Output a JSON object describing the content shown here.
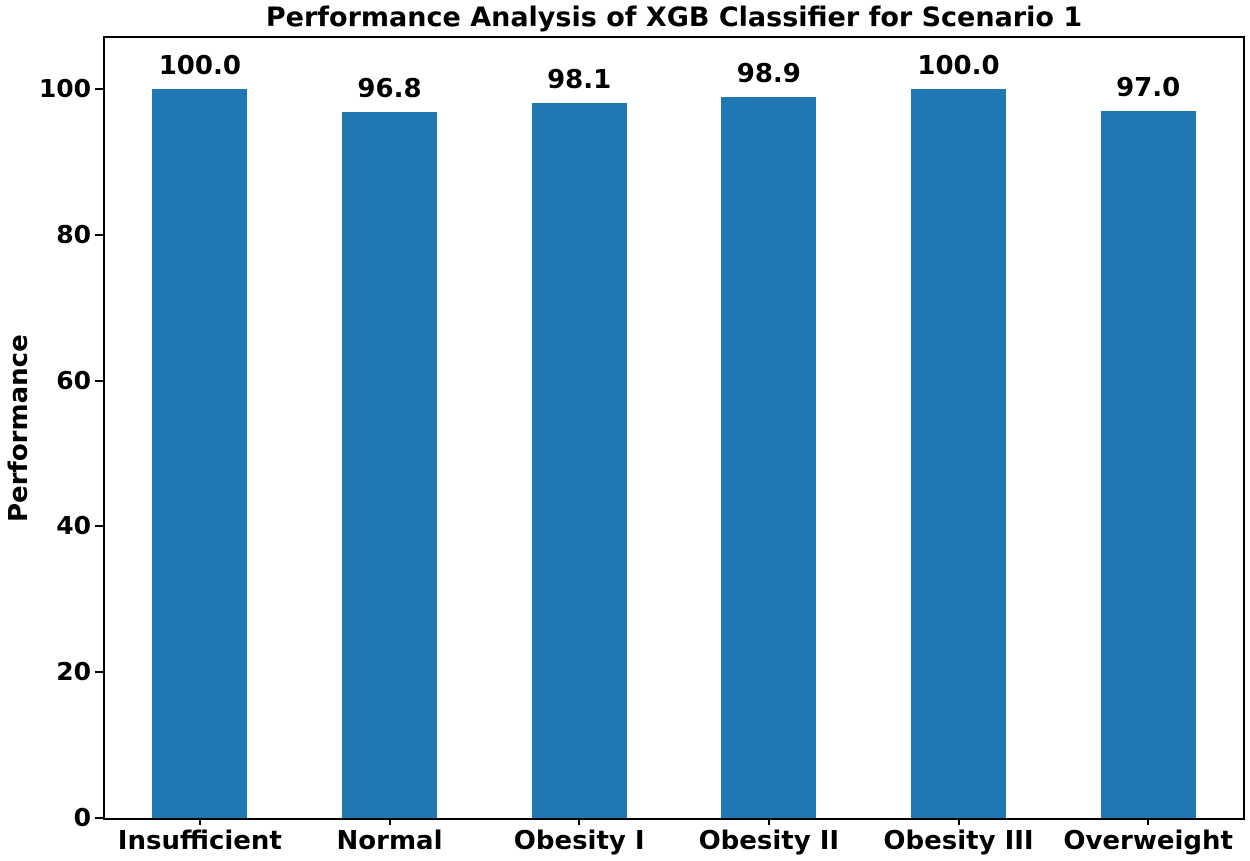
{
  "chart_data": {
    "type": "bar",
    "title": "Performance Analysis of XGB Classifier for Scenario 1",
    "xlabel": "",
    "ylabel": "Performance",
    "categories": [
      "Insufficient",
      "Normal",
      "Obesity I",
      "Obesity II",
      "Obesity III",
      "Overweight"
    ],
    "values": [
      100.0,
      96.8,
      98.1,
      98.9,
      100.0,
      97.0
    ],
    "value_labels": [
      "100.0",
      "96.8",
      "98.1",
      "98.9",
      "100.0",
      "97.0"
    ],
    "ylim": [
      0,
      107
    ],
    "yticks": [
      0,
      20,
      40,
      60,
      80,
      100
    ],
    "bar_width_fraction": 0.5,
    "grid": false,
    "legend": null,
    "bar_color": "#1f77b4",
    "axis_color": "#000000",
    "text_color": "#000000",
    "background_color": "#ffffff"
  }
}
